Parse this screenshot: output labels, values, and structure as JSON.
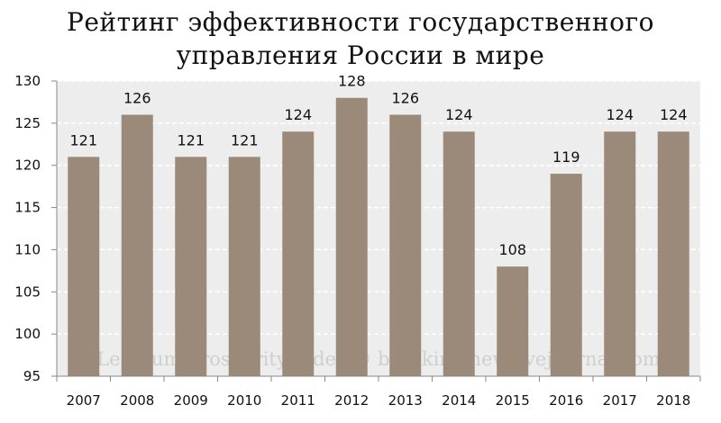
{
  "chart_data": {
    "type": "bar",
    "title_lines": [
      "Рейтинг эффективности государственного",
      "управления России в мире"
    ],
    "categories": [
      "2007",
      "2008",
      "2009",
      "2010",
      "2011",
      "2012",
      "2013",
      "2014",
      "2015",
      "2016",
      "2017",
      "2018"
    ],
    "values": [
      121,
      126,
      121,
      121,
      124,
      128,
      126,
      124,
      108,
      119,
      124,
      124
    ],
    "ylim": [
      95,
      130
    ],
    "yticks": [
      95,
      100,
      105,
      110,
      115,
      120,
      125,
      130
    ],
    "grid": true,
    "legend": "none",
    "bar_color": "#9b8979",
    "plot_background": "#ededed",
    "watermark": "Legatum Prosperity Index © burckina-new.livejournal.com"
  }
}
